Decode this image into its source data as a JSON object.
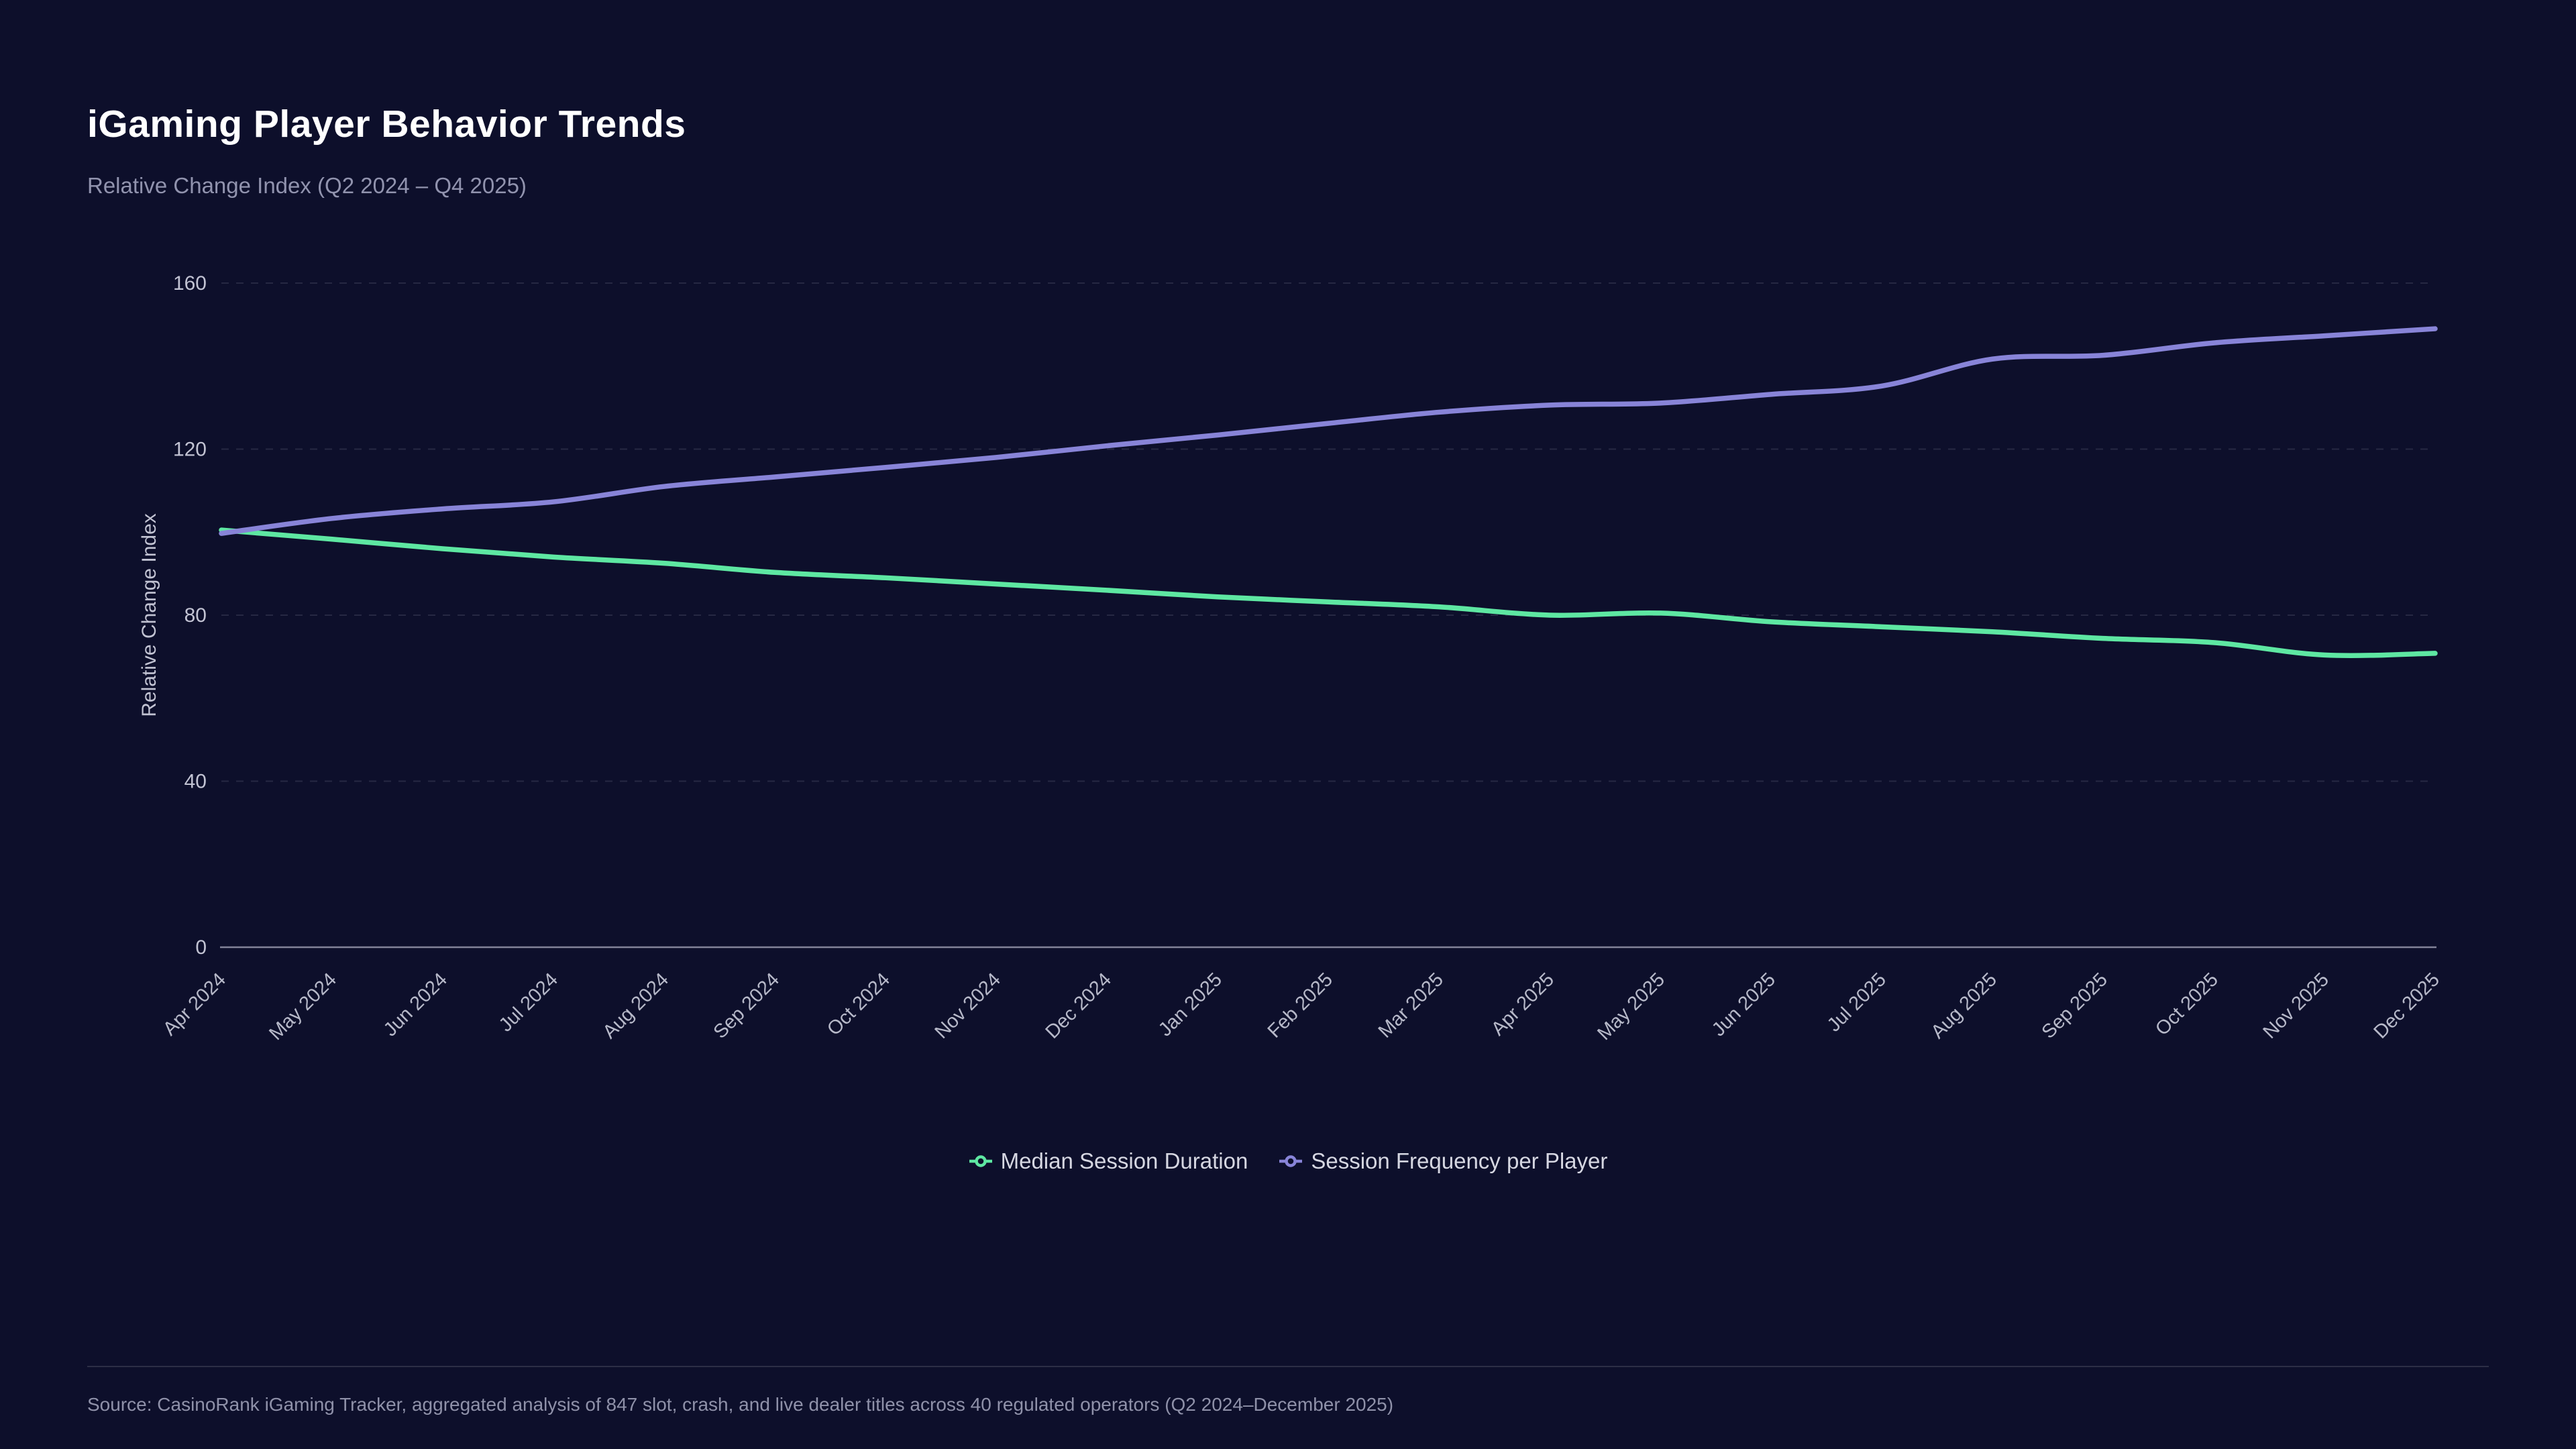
{
  "header": {
    "title": "iGaming Player Behavior Trends",
    "subtitle": "Relative Change Index (Q2 2024 – Q4 2025)"
  },
  "footer": {
    "source": "Source: CasinoRank iGaming Tracker, aggregated analysis of 847 slot, crash, and live dealer titles across 40 regulated operators (Q2 2024–December 2025)"
  },
  "colors": {
    "background": "#0d0f2b",
    "title_text": "#ffffff",
    "subtitle_text": "#9193ae",
    "tick_text": "#c2c3d3",
    "x_tick_text": "#b7b9c9",
    "axis_line": "#8f90a6",
    "gridline": "rgba(205,207,228,0.13)",
    "legend_text": "#d6d7e2",
    "source_text": "#8f91a9"
  },
  "chart_data": {
    "type": "line",
    "title": "iGaming Player Behavior Trends",
    "subtitle": "Relative Change Index (Q2 2024 – Q4 2025)",
    "xlabel": "",
    "ylabel": "Relative Change Index",
    "ylim": [
      0,
      160
    ],
    "yticks": [
      0,
      40,
      80,
      120,
      160
    ],
    "grid": "horizontal-dashed",
    "legend_position": "bottom",
    "categories": [
      "Apr 2024",
      "May 2024",
      "Jun 2024",
      "Jul 2024",
      "Aug 2024",
      "Sep 2024",
      "Oct 2024",
      "Nov 2024",
      "Dec 2024",
      "Jan 2025",
      "Feb 2025",
      "Mar 2025",
      "Apr 2025",
      "May 2025",
      "Jun 2025",
      "Jul 2025",
      "Aug 2025",
      "Sep 2025",
      "Oct 2025",
      "Nov 2025",
      "Dec 2025"
    ],
    "series": [
      {
        "name": "Median Session Duration",
        "color": "#5ee7a2",
        "values": [
          100.5,
          98.3,
          96.0,
          94.0,
          92.5,
          90.3,
          89.0,
          87.5,
          86.0,
          84.4,
          83.2,
          82.0,
          80.0,
          80.5,
          78.4,
          77.2,
          76.0,
          74.4,
          73.4,
          70.4,
          70.8
        ]
      },
      {
        "name": "Session Frequency per Player",
        "color": "#8884d8",
        "values": [
          99.7,
          103.3,
          105.6,
          107.3,
          111.0,
          113.3,
          115.6,
          118.0,
          120.8,
          123.4,
          126.2,
          128.9,
          130.6,
          131.1,
          133.2,
          135.2,
          141.7,
          142.6,
          145.6,
          147.3,
          149.0
        ]
      }
    ]
  }
}
